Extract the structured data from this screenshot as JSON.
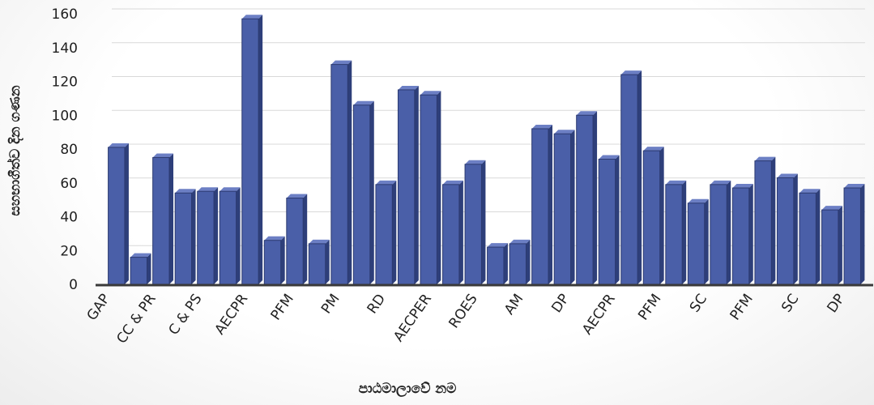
{
  "chart_data": {
    "type": "bar",
    "title": "",
    "xlabel": "පාඨමාලාවේ නම",
    "ylabel": "සහභාගීත්ව දින ගණන",
    "ylim": [
      0,
      160
    ],
    "yticks": [
      0,
      20,
      40,
      60,
      80,
      100,
      120,
      140,
      160
    ],
    "grid": true,
    "legend": "none",
    "bar_color": "#4a5fa8",
    "x_tick_labels": [
      "GAP",
      "CC & PR",
      "C & PS",
      "AECPR",
      "PFM",
      "PM",
      "RD",
      "AECPER",
      "ROES",
      "AM",
      "DP",
      "AECPR",
      "PFM",
      "SC",
      "PFM",
      "SC",
      "DP"
    ],
    "values": [
      81,
      16,
      75,
      54,
      55,
      55,
      157,
      26,
      51,
      24,
      130,
      106,
      59,
      115,
      112,
      59,
      71,
      22,
      24,
      92,
      89,
      100,
      74,
      124,
      79,
      59,
      48,
      59,
      57,
      73,
      63,
      54,
      44,
      57
    ]
  }
}
